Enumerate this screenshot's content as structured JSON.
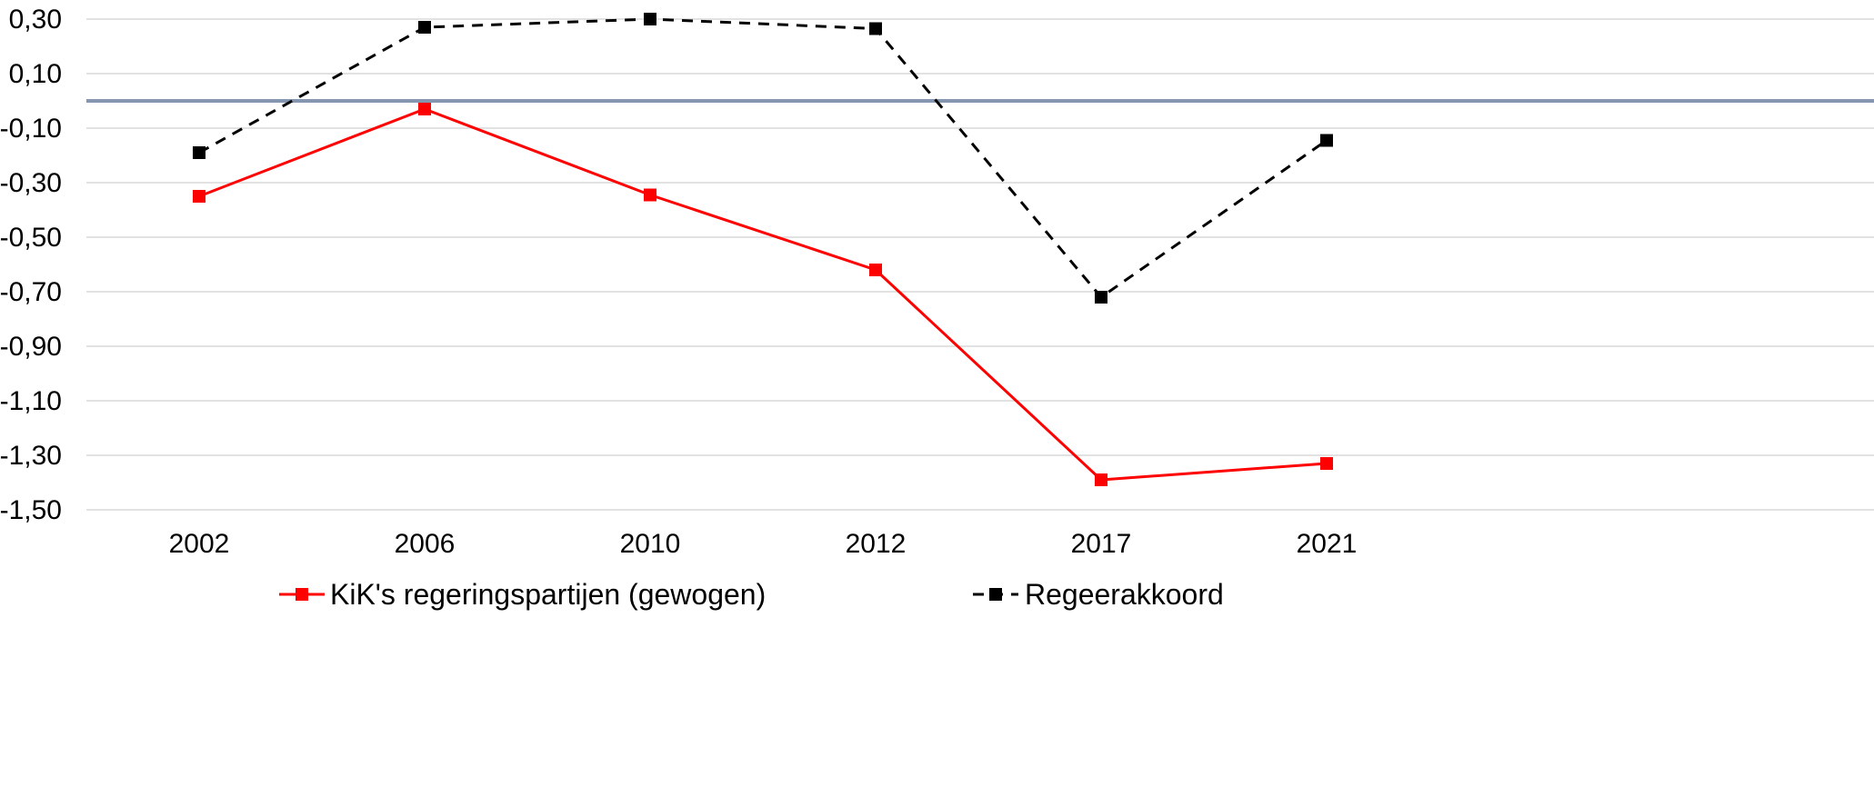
{
  "chart_data": {
    "type": "line",
    "title": "",
    "xlabel": "",
    "ylabel": "",
    "categories": [
      "2002",
      "2006",
      "2010",
      "2012",
      "2017",
      "2021"
    ],
    "ylim": [
      -1.5,
      0.3
    ],
    "y_ticks": [
      "0,30",
      "0,10",
      "-0,10",
      "-0,30",
      "-0,50",
      "-0,70",
      "-0,90",
      "-1,10",
      "-1,30",
      "-1,50"
    ],
    "y_tick_values": [
      0.3,
      0.1,
      -0.1,
      -0.3,
      -0.5,
      -0.7,
      -0.9,
      -1.1,
      -1.3,
      -1.5
    ],
    "reference_line": {
      "y": 0.0,
      "color": "#8496B0"
    },
    "grid": true,
    "legend_position": "bottom",
    "series": [
      {
        "name": "KiK's regeringspartijen (gewogen)",
        "values": [
          -0.35,
          -0.03,
          -0.345,
          -0.62,
          -1.39,
          -1.33
        ],
        "color": "#FF0000",
        "line_style": "solid",
        "marker": "square"
      },
      {
        "name": "Regeerakkoord",
        "values": [
          -0.19,
          0.27,
          0.3,
          0.265,
          -0.72,
          -0.145
        ],
        "color": "#000000",
        "line_style": "dashed",
        "marker": "square"
      }
    ]
  }
}
